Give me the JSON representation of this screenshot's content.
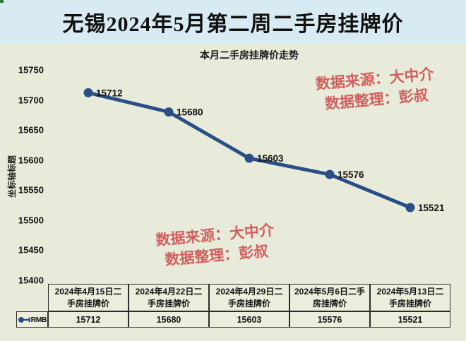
{
  "page_title": "无锡2024年5月第二周二手房挂牌价",
  "watermark": {
    "source_label": "数据来源：大中介",
    "editor_label": "数据整理：彭叔"
  },
  "chart_data": {
    "type": "line",
    "title": "本月二手房挂牌价走势",
    "y_axis_title": "坐标轴标题",
    "categories": [
      "2024年4月15日二手房挂牌价",
      "2024年4月22日二手房挂牌价",
      "2024年4月29日二手房挂牌价",
      "2024年5月6日二手房挂牌价",
      "2024年5月13日二手房挂牌价"
    ],
    "series": [
      {
        "name": "RMB",
        "values": [
          15712,
          15680,
          15603,
          15576,
          15521
        ]
      }
    ],
    "ylim": [
      15400,
      15750
    ],
    "y_ticks": [
      15750,
      15700,
      15650,
      15600,
      15550,
      15500,
      15450,
      15400
    ],
    "grid": false,
    "legend_position": "left-of-data-table",
    "marker": "circle",
    "line_color": "#2a4f87",
    "data_labels_visible": true
  },
  "colors": {
    "title_band_bg": "#d8eaf2",
    "chart_bg": "#e9ebda",
    "table_cell_bg": "#eceddc",
    "line": "#2a4f87",
    "watermark_red": "#d2605f",
    "text": "#111111"
  }
}
